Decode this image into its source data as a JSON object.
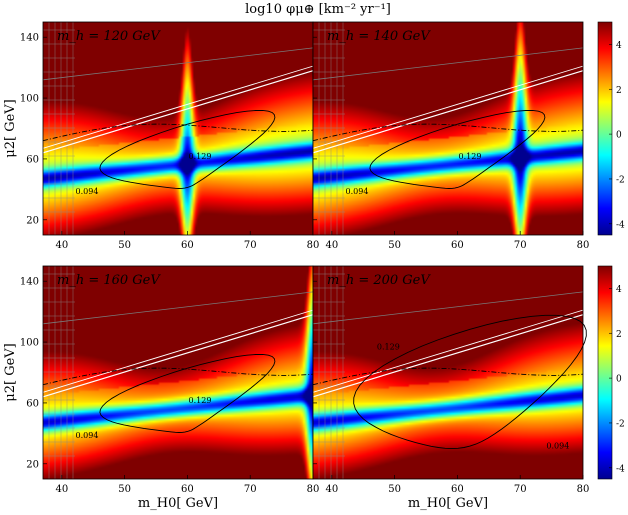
{
  "figure_title": "log10 φμ⊕ [km⁻² yr⁻¹]",
  "chart_data": [
    {
      "type": "heatmap",
      "panel_label": "m_h = 120 GeV",
      "mh": 120,
      "xlim": [
        37,
        80
      ],
      "ylim": [
        10,
        150
      ],
      "xticks": [
        40,
        50,
        60,
        70,
        80
      ],
      "yticks": [
        20,
        60,
        100,
        140
      ],
      "xlabel": "",
      "ylabel": "μ2[ GeV]",
      "contours": [
        "0.129",
        "0.094"
      ],
      "resonance_line_x": 60
    },
    {
      "type": "heatmap",
      "panel_label": "m_h = 140 GeV",
      "mh": 140,
      "xlim": [
        37,
        80
      ],
      "ylim": [
        10,
        150
      ],
      "xticks": [
        40,
        50,
        60,
        70,
        80
      ],
      "yticks": [
        20,
        60,
        100,
        140
      ],
      "xlabel": "",
      "ylabel": "",
      "contours": [
        "0.129",
        "0.094"
      ],
      "resonance_line_x": 70
    },
    {
      "type": "heatmap",
      "panel_label": "m_h = 160 GeV",
      "mh": 160,
      "xlim": [
        37,
        80
      ],
      "ylim": [
        10,
        150
      ],
      "xticks": [
        40,
        50,
        60,
        70,
        80
      ],
      "yticks": [
        20,
        60,
        100,
        140
      ],
      "xlabel": "m_H0[ GeV]",
      "ylabel": "μ2[ GeV]",
      "contours": [
        "0.129",
        "0.094"
      ],
      "resonance_line_x": 80
    },
    {
      "type": "heatmap",
      "panel_label": "m_h = 200 GeV",
      "mh": 200,
      "xlim": [
        37,
        80
      ],
      "ylim": [
        10,
        150
      ],
      "xticks": [
        40,
        50,
        60,
        70,
        80
      ],
      "yticks": [
        20,
        60,
        100,
        140
      ],
      "xlabel": "m_H0[ GeV]",
      "ylabel": "",
      "contours": [
        "0.094",
        "0.129"
      ],
      "resonance_line_x": null
    }
  ],
  "colorbar": {
    "range": [
      -4.5,
      5
    ],
    "ticks": [
      -4,
      -2,
      0,
      2,
      4
    ],
    "colors": [
      "#00008f",
      "#0000ff",
      "#007fff",
      "#00ffff",
      "#7fff7f",
      "#ffff00",
      "#ff7f00",
      "#ff0000",
      "#7f0000"
    ]
  }
}
